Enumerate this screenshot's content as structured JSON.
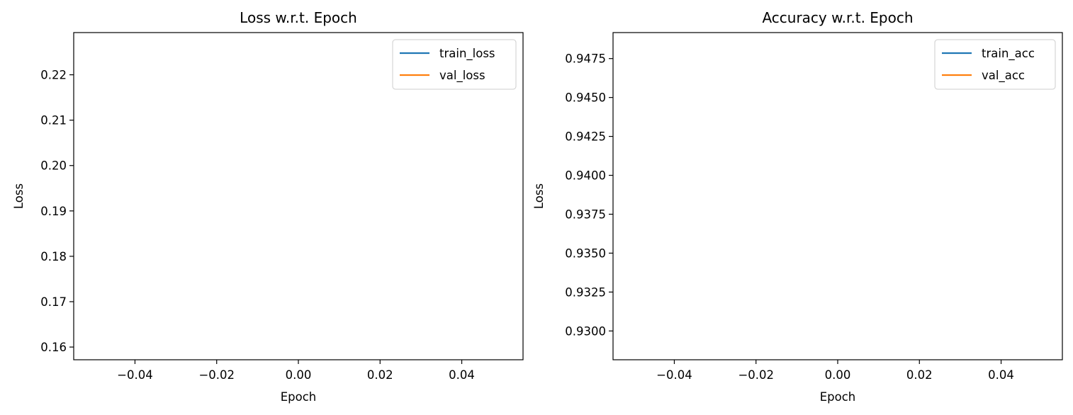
{
  "chart_data": [
    {
      "type": "line",
      "title": "Loss w.r.t. Epoch",
      "xlabel": "Epoch",
      "ylabel": "Loss",
      "xlim": [
        -0.055,
        0.055
      ],
      "ylim": [
        0.1572,
        0.2293
      ],
      "x_ticks": [
        -0.04,
        -0.02,
        0.0,
        0.02,
        0.04
      ],
      "x_tick_labels": [
        "−0.04",
        "−0.02",
        "0.00",
        "0.02",
        "0.04"
      ],
      "y_ticks": [
        0.16,
        0.17,
        0.18,
        0.19,
        0.2,
        0.21,
        0.22
      ],
      "y_tick_labels": [
        "0.16",
        "0.17",
        "0.18",
        "0.19",
        "0.20",
        "0.21",
        "0.22"
      ],
      "grid": false,
      "legend_position": "top-right",
      "series": [
        {
          "name": "train_loss",
          "color": "#1f77b4",
          "x": [],
          "y": []
        },
        {
          "name": "val_loss",
          "color": "#ff7f0e",
          "x": [],
          "y": []
        }
      ]
    },
    {
      "type": "line",
      "title": "Accuracy w.r.t. Epoch",
      "xlabel": "Epoch",
      "ylabel": "Loss",
      "xlim": [
        -0.055,
        0.055
      ],
      "ylim": [
        0.92815,
        0.94917
      ],
      "x_ticks": [
        -0.04,
        -0.02,
        0.0,
        0.02,
        0.04
      ],
      "x_tick_labels": [
        "−0.04",
        "−0.02",
        "0.00",
        "0.02",
        "0.04"
      ],
      "y_ticks": [
        0.93,
        0.9325,
        0.935,
        0.9375,
        0.94,
        0.9425,
        0.945,
        0.9475
      ],
      "y_tick_labels": [
        "0.9300",
        "0.9325",
        "0.9350",
        "0.9375",
        "0.9400",
        "0.9425",
        "0.9450",
        "0.9475"
      ],
      "grid": false,
      "legend_position": "top-right",
      "series": [
        {
          "name": "train_acc",
          "color": "#1f77b4",
          "x": [],
          "y": []
        },
        {
          "name": "val_acc",
          "color": "#ff7f0e",
          "x": [],
          "y": []
        }
      ]
    }
  ]
}
